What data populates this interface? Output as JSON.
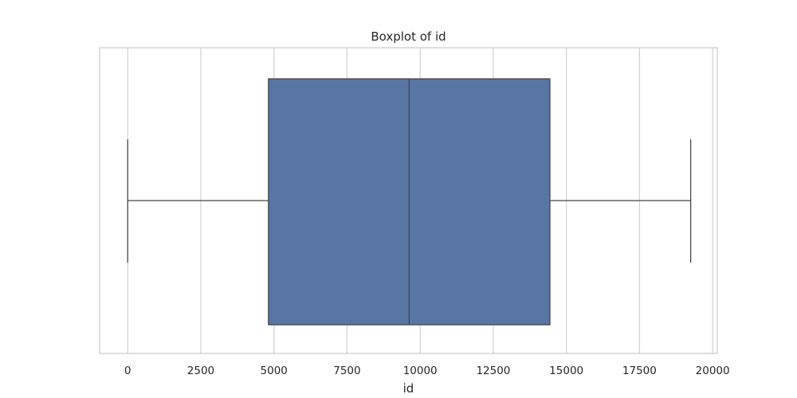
{
  "chart_data": {
    "type": "boxplot",
    "title": "Boxplot of id",
    "xlabel": "id",
    "ylabel": "",
    "orientation": "horizontal",
    "xlim": [
      -960,
      20160
    ],
    "x_ticks": [
      0,
      2500,
      5000,
      7500,
      10000,
      12500,
      15000,
      17500,
      20000
    ],
    "x_tick_labels": [
      "0",
      "2500",
      "5000",
      "7500",
      "10000",
      "12500",
      "15000",
      "17500",
      "20000"
    ],
    "grid": true,
    "legend": "none",
    "box": {
      "min": 0,
      "q1": 4812,
      "median": 9625,
      "q3": 14437,
      "max": 19250
    },
    "box_color": "#5875a4",
    "line_color": "#444444",
    "grid_color": "#d3d3d3"
  }
}
